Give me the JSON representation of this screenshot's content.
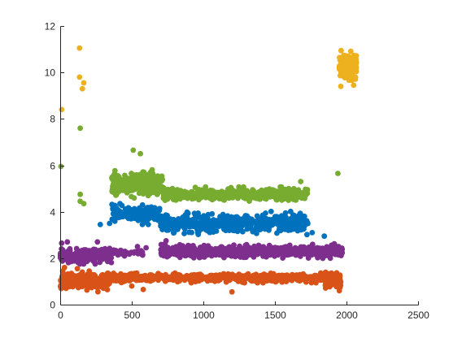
{
  "chart_data": {
    "type": "scatter",
    "title": "",
    "xlabel": "",
    "ylabel": "",
    "xlim": [
      0,
      2500
    ],
    "ylim": [
      0,
      12
    ],
    "xticks": [
      0,
      500,
      1000,
      1500,
      2000,
      2500
    ],
    "xtick_labels": [
      "0",
      "500",
      "1000",
      "1500",
      "2000",
      "2500"
    ],
    "yticks": [
      0,
      2,
      4,
      6,
      8,
      10,
      12
    ],
    "ytick_labels": [
      "0",
      "2",
      "4",
      "6",
      "8",
      "10",
      "12"
    ],
    "grid": false,
    "legend": "none",
    "series": [
      {
        "color": "#0072BD",
        "generator": {
          "seed": 11,
          "segments": [
            {
              "x_range": [
                360,
                700
              ],
              "y_mean": 3.9,
              "y_spread": 0.28,
              "n": 140
            },
            {
              "x_range": [
                700,
                1730
              ],
              "y_mean": 3.5,
              "y_spread": 0.32,
              "n": 460
            }
          ]
        },
        "points": [
          [
            280,
            3.45
          ],
          [
            345,
            3.5
          ],
          [
            1845,
            2.95
          ],
          [
            1760,
            3.1
          ]
        ]
      },
      {
        "color": "#D95319",
        "generator": {
          "seed": 23,
          "segments": [
            {
              "x_range": [
                0,
                350
              ],
              "y_mean": 1.0,
              "y_spread": 0.28,
              "n": 240
            },
            {
              "x_range": [
                350,
                1930
              ],
              "y_mean": 1.15,
              "y_spread": 0.13,
              "n": 620
            },
            {
              "x_range": [
                1850,
                1960
              ],
              "y_mean": 1.05,
              "y_spread": 0.22,
              "n": 110
            }
          ]
        },
        "points": [
          [
            500,
            0.8
          ],
          [
            580,
            0.65
          ],
          [
            1200,
            0.55
          ],
          [
            1950,
            0.6
          ],
          [
            1955,
            0.75
          ],
          [
            30,
            1.6
          ],
          [
            120,
            1.55
          ]
        ]
      },
      {
        "color": "#EDB120",
        "generator": {
          "seed": 37,
          "segments": [
            {
              "x_range": [
                1950,
                2070
              ],
              "y_mean": 10.3,
              "y_spread": 0.4,
              "n": 170
            }
          ]
        },
        "points": [
          [
            10,
            8.4
          ],
          [
            135,
            11.05
          ],
          [
            135,
            9.8
          ],
          [
            165,
            9.55
          ],
          [
            155,
            9.3
          ],
          [
            1960,
            9.4
          ],
          [
            2050,
            9.45
          ]
        ]
      },
      {
        "color": "#7E2F8E",
        "generator": {
          "seed": 53,
          "segments": [
            {
              "x_range": [
                0,
                370
              ],
              "y_mean": 2.1,
              "y_spread": 0.22,
              "n": 240
            },
            {
              "x_range": [
                370,
                580
              ],
              "y_mean": 2.25,
              "y_spread": 0.12,
              "n": 40
            },
            {
              "x_range": [
                700,
                1970
              ],
              "y_mean": 2.3,
              "y_spread": 0.2,
              "n": 640
            }
          ]
        },
        "points": [
          [
            10,
            2.65
          ],
          [
            50,
            2.7
          ],
          [
            260,
            2.7
          ],
          [
            540,
            2.5
          ],
          [
            600,
            2.45
          ],
          [
            740,
            2.75
          ]
        ]
      },
      {
        "color": "#77AC30",
        "generator": {
          "seed": 71,
          "segments": [
            {
              "x_range": [
                360,
                720
              ],
              "y_mean": 5.2,
              "y_spread": 0.38,
              "n": 300
            },
            {
              "x_range": [
                720,
                1730
              ],
              "y_mean": 4.75,
              "y_spread": 0.2,
              "n": 460
            }
          ]
        },
        "points": [
          [
            5,
            5.95
          ],
          [
            140,
            7.6
          ],
          [
            140,
            4.75
          ],
          [
            140,
            4.45
          ],
          [
            165,
            4.35
          ],
          [
            1940,
            5.65
          ],
          [
            510,
            6.65
          ],
          [
            560,
            6.5
          ],
          [
            1680,
            5.3
          ]
        ]
      }
    ]
  }
}
